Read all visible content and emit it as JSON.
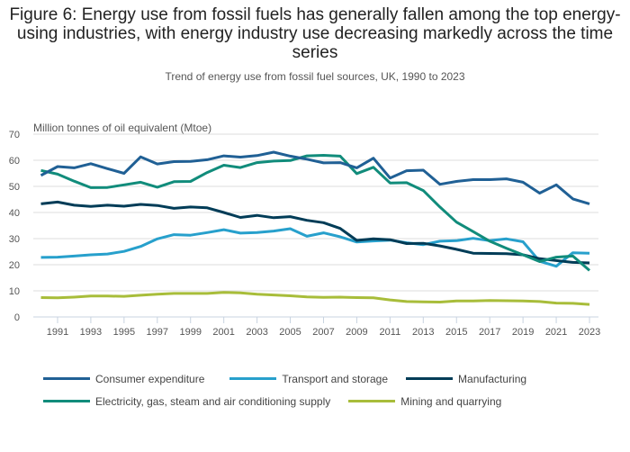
{
  "header": {
    "title": "Figure 6: Energy use from fossil fuels has generally fallen among the top energy-using industries, with energy industry use decreasing markedly across the time series",
    "subtitle": "Trend of energy use from fossil fuel sources, UK, 1990 to 2023"
  },
  "chart_data": {
    "type": "line",
    "title": "Figure 6: Energy use from fossil fuels has generally fallen among the top energy-using industries, with energy industry use decreasing markedly across the time series",
    "subtitle": "Trend of energy use from fossil fuel sources, UK, 1990 to 2023",
    "xlabel": "",
    "ylabel": "Million tonnes of oil equivalent (Mtoe)",
    "ylim": [
      0,
      70
    ],
    "yticks": [
      0,
      10,
      20,
      30,
      40,
      50,
      60,
      70
    ],
    "xlim": [
      1990,
      2023
    ],
    "xticks": [
      1991,
      1993,
      1995,
      1997,
      1999,
      2001,
      2003,
      2005,
      2007,
      2009,
      2011,
      2013,
      2015,
      2017,
      2019,
      2021,
      2023
    ],
    "grid": true,
    "legend_position": "bottom",
    "x": [
      1990,
      1991,
      1992,
      1993,
      1994,
      1995,
      1996,
      1997,
      1998,
      1999,
      2000,
      2001,
      2002,
      2003,
      2004,
      2005,
      2006,
      2007,
      2008,
      2009,
      2010,
      2011,
      2012,
      2013,
      2014,
      2015,
      2016,
      2017,
      2018,
      2019,
      2020,
      2021,
      2022,
      2023
    ],
    "series": [
      {
        "name": "Consumer expenditure",
        "color": "#206095",
        "values": [
          54.2,
          57.6,
          57.1,
          58.7,
          56.8,
          55.0,
          61.3,
          58.6,
          59.5,
          59.6,
          60.2,
          61.7,
          61.2,
          61.8,
          63.1,
          61.6,
          60.4,
          59.0,
          59.1,
          57.1,
          60.8,
          53.2,
          56.0,
          56.2,
          50.8,
          51.9,
          52.6,
          52.6,
          52.9,
          51.6,
          47.4,
          50.6,
          45.2,
          43.3
        ]
      },
      {
        "name": "Transport and storage",
        "color": "#27A0CC",
        "values": [
          22.8,
          22.9,
          23.3,
          23.8,
          24.1,
          25.1,
          27.0,
          29.9,
          31.5,
          31.3,
          32.3,
          33.4,
          32.1,
          32.3,
          32.9,
          33.8,
          30.9,
          32.2,
          30.7,
          28.7,
          29.1,
          29.4,
          28.4,
          27.7,
          29.0,
          29.2,
          30.1,
          29.2,
          29.9,
          28.8,
          21.3,
          19.4,
          24.6,
          24.4
        ]
      },
      {
        "name": "Manufacturing",
        "color": "#003C57",
        "values": [
          43.3,
          44.0,
          42.8,
          42.3,
          42.8,
          42.4,
          43.1,
          42.7,
          41.6,
          42.1,
          41.8,
          40.0,
          38.1,
          38.9,
          38.0,
          38.4,
          37.0,
          36.1,
          33.9,
          29.3,
          29.9,
          29.6,
          28.1,
          28.2,
          27.2,
          25.9,
          24.4,
          24.3,
          24.2,
          23.8,
          22.3,
          21.6,
          20.9,
          20.7
        ]
      },
      {
        "name": "Electricity, gas, steam and air conditioning supply",
        "color": "#118C7B",
        "values": [
          56.1,
          54.7,
          52.0,
          49.5,
          49.6,
          50.6,
          51.6,
          49.7,
          51.8,
          51.9,
          55.3,
          58.1,
          57.2,
          59.1,
          59.7,
          59.9,
          61.7,
          61.9,
          61.6,
          54.9,
          57.3,
          51.3,
          51.4,
          48.4,
          42.1,
          36.3,
          32.7,
          29.0,
          26.3,
          23.8,
          21.2,
          22.9,
          23.3,
          17.8
        ]
      },
      {
        "name": "Mining and quarrying",
        "color": "#A8BD3A",
        "values": [
          7.4,
          7.3,
          7.6,
          8.0,
          8.0,
          7.9,
          8.3,
          8.7,
          9.0,
          9.0,
          9.0,
          9.4,
          9.2,
          8.7,
          8.4,
          8.1,
          7.7,
          7.5,
          7.6,
          7.4,
          7.3,
          6.5,
          5.9,
          5.8,
          5.7,
          6.1,
          6.1,
          6.3,
          6.2,
          6.1,
          5.9,
          5.3,
          5.2,
          4.8
        ]
      }
    ]
  }
}
